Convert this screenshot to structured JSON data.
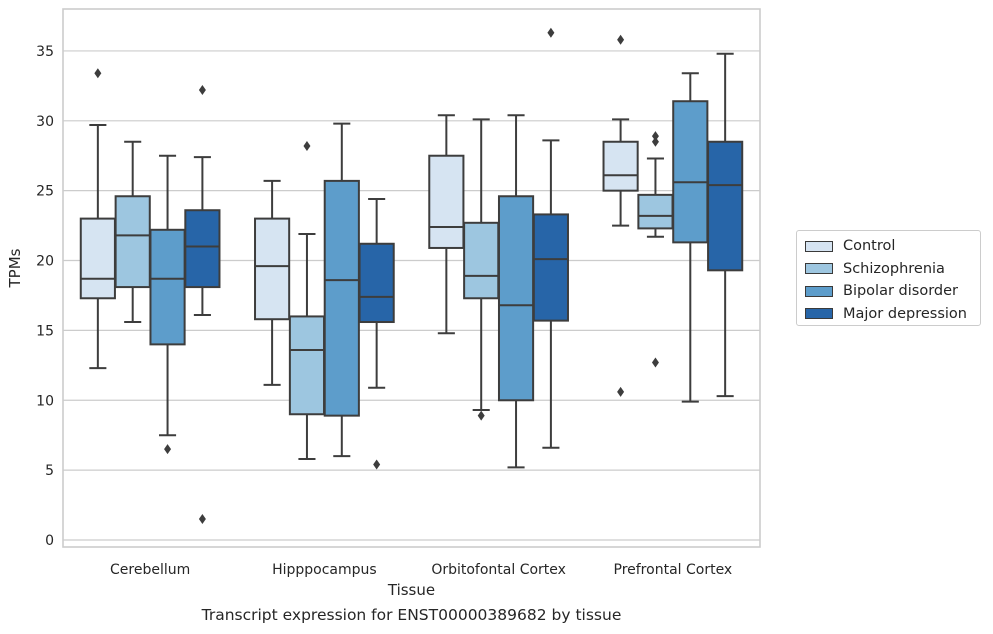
{
  "chart_data": {
    "type": "box",
    "caption": "Transcript expression for ENST00000389682 by tissue",
    "xlabel": "Tissue",
    "ylabel": "TPMs",
    "ylim": [
      -0.5,
      38
    ],
    "yticks": [
      0,
      5,
      10,
      15,
      20,
      25,
      30,
      35
    ],
    "grid": "horizontal",
    "legend_position": "right",
    "categories": [
      "Cerebellum",
      "Hipppocampus",
      "Orbitofontal Cortex",
      "Prefrontal Cortex"
    ],
    "series": [
      {
        "name": "Control",
        "color": "#d6e4f2",
        "boxes": [
          {
            "whisker_low": 12.3,
            "q1": 17.3,
            "median": 18.7,
            "q3": 23.0,
            "whisker_high": 29.7,
            "outliers": [
              33.4
            ]
          },
          {
            "whisker_low": 11.1,
            "q1": 15.8,
            "median": 19.6,
            "q3": 23.0,
            "whisker_high": 25.7,
            "outliers": []
          },
          {
            "whisker_low": 14.8,
            "q1": 20.9,
            "median": 22.4,
            "q3": 27.5,
            "whisker_high": 30.4,
            "outliers": []
          },
          {
            "whisker_low": 22.5,
            "q1": 25.0,
            "median": 26.1,
            "q3": 28.5,
            "whisker_high": 30.1,
            "outliers": [
              35.8,
              10.6
            ]
          }
        ]
      },
      {
        "name": "Schizophrenia",
        "color": "#9dc6e0",
        "boxes": [
          {
            "whisker_low": 15.6,
            "q1": 18.1,
            "median": 21.8,
            "q3": 24.6,
            "whisker_high": 28.5,
            "outliers": []
          },
          {
            "whisker_low": 5.8,
            "q1": 9.0,
            "median": 13.6,
            "q3": 16.0,
            "whisker_high": 21.9,
            "outliers": [
              28.2
            ]
          },
          {
            "whisker_low": 9.3,
            "q1": 17.3,
            "median": 18.9,
            "q3": 22.7,
            "whisker_high": 30.1,
            "outliers": [
              8.9
            ]
          },
          {
            "whisker_low": 21.7,
            "q1": 22.3,
            "median": 23.2,
            "q3": 24.7,
            "whisker_high": 27.3,
            "outliers": [
              28.9,
              28.5,
              12.7
            ]
          }
        ]
      },
      {
        "name": "Bipolar disorder",
        "color": "#5d9dcb",
        "boxes": [
          {
            "whisker_low": 7.5,
            "q1": 14.0,
            "median": 18.7,
            "q3": 22.2,
            "whisker_high": 27.5,
            "outliers": [
              6.5
            ]
          },
          {
            "whisker_low": 6.0,
            "q1": 8.9,
            "median": 18.6,
            "q3": 25.7,
            "whisker_high": 29.8,
            "outliers": []
          },
          {
            "whisker_low": 5.2,
            "q1": 10.0,
            "median": 16.8,
            "q3": 24.6,
            "whisker_high": 30.4,
            "outliers": []
          },
          {
            "whisker_low": 9.9,
            "q1": 21.3,
            "median": 25.6,
            "q3": 31.4,
            "whisker_high": 33.4,
            "outliers": []
          }
        ]
      },
      {
        "name": "Major depression",
        "color": "#2765a8",
        "boxes": [
          {
            "whisker_low": 16.1,
            "q1": 18.1,
            "median": 21.0,
            "q3": 23.6,
            "whisker_high": 27.4,
            "outliers": [
              32.2,
              1.5
            ]
          },
          {
            "whisker_low": 10.9,
            "q1": 15.6,
            "median": 17.4,
            "q3": 21.2,
            "whisker_high": 24.4,
            "outliers": [
              5.4
            ]
          },
          {
            "whisker_low": 6.6,
            "q1": 15.7,
            "median": 20.1,
            "q3": 23.3,
            "whisker_high": 28.6,
            "outliers": [
              36.3
            ]
          },
          {
            "whisker_low": 10.3,
            "q1": 19.3,
            "median": 25.4,
            "q3": 28.5,
            "whisker_high": 34.8,
            "outliers": []
          }
        ]
      }
    ]
  }
}
